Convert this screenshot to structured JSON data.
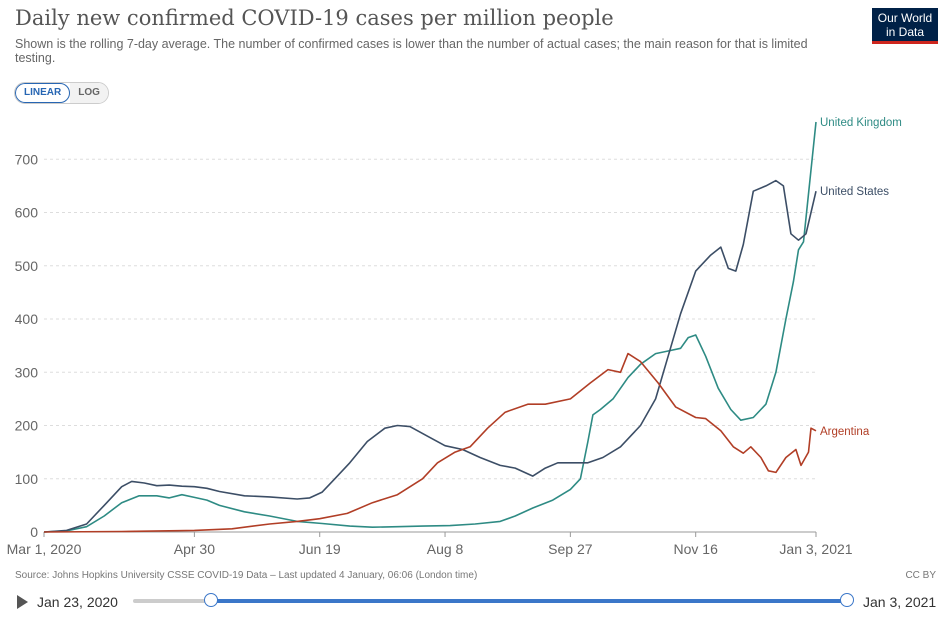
{
  "header": {
    "title": "Daily new confirmed COVID-19 cases per million people",
    "subtitle": "Shown is the rolling 7-day average. The number of confirmed cases is lower than the number of actual cases; the main reason for that is limited testing.",
    "logo_line1": "Our World",
    "logo_line2": "in Data"
  },
  "scale_toggle": {
    "linear": "LINEAR",
    "log": "LOG",
    "selected": "LINEAR"
  },
  "footer": {
    "source": "Source: Johns Hopkins University CSSE COVID-19 Data – Last updated 4 January, 06:06 (London time)",
    "license": "CC BY"
  },
  "timeline": {
    "start_label": "Jan 23, 2020",
    "end_label": "Jan 3, 2021",
    "play_icon": "play-icon"
  },
  "chart_data": {
    "type": "line",
    "title": "Daily new confirmed COVID-19 cases per million people",
    "x_tick_labels": [
      "Mar 1, 2020",
      "Apr 30",
      "Jun 19",
      "Aug 8",
      "Sep 27",
      "Nov 16",
      "Jan 3, 2021"
    ],
    "x_tick_dates": [
      "2020-03-01",
      "2020-04-30",
      "2020-06-19",
      "2020-08-08",
      "2020-09-27",
      "2020-11-16",
      "2021-01-03"
    ],
    "xlim": [
      "2020-03-01",
      "2021-01-03"
    ],
    "y_ticks": [
      0,
      100,
      200,
      300,
      400,
      500,
      600,
      700
    ],
    "ylim": [
      0,
      770
    ],
    "grid": "horizontal dashed",
    "legend": "labels at line ends",
    "series": [
      {
        "name": "United Kingdom",
        "color": "#2e8b84",
        "points": [
          [
            "2020-03-01",
            0
          ],
          [
            "2020-03-10",
            2
          ],
          [
            "2020-03-18",
            10
          ],
          [
            "2020-03-25",
            30
          ],
          [
            "2020-04-01",
            55
          ],
          [
            "2020-04-08",
            68
          ],
          [
            "2020-04-15",
            68
          ],
          [
            "2020-04-20",
            64
          ],
          [
            "2020-04-25",
            70
          ],
          [
            "2020-04-30",
            65
          ],
          [
            "2020-05-05",
            60
          ],
          [
            "2020-05-10",
            50
          ],
          [
            "2020-05-20",
            38
          ],
          [
            "2020-05-30",
            30
          ],
          [
            "2020-06-10",
            20
          ],
          [
            "2020-06-20",
            16
          ],
          [
            "2020-07-01",
            11
          ],
          [
            "2020-07-10",
            9
          ],
          [
            "2020-07-20",
            10
          ],
          [
            "2020-07-30",
            11
          ],
          [
            "2020-08-10",
            12
          ],
          [
            "2020-08-20",
            15
          ],
          [
            "2020-08-30",
            20
          ],
          [
            "2020-09-05",
            30
          ],
          [
            "2020-09-12",
            45
          ],
          [
            "2020-09-20",
            60
          ],
          [
            "2020-09-27",
            80
          ],
          [
            "2020-10-01",
            100
          ],
          [
            "2020-10-04",
            170
          ],
          [
            "2020-10-06",
            220
          ],
          [
            "2020-10-09",
            230
          ],
          [
            "2020-10-14",
            250
          ],
          [
            "2020-10-20",
            290
          ],
          [
            "2020-10-25",
            315
          ],
          [
            "2020-10-31",
            335
          ],
          [
            "2020-11-05",
            340
          ],
          [
            "2020-11-10",
            345
          ],
          [
            "2020-11-13",
            365
          ],
          [
            "2020-11-16",
            370
          ],
          [
            "2020-11-20",
            330
          ],
          [
            "2020-11-25",
            270
          ],
          [
            "2020-11-30",
            230
          ],
          [
            "2020-12-04",
            210
          ],
          [
            "2020-12-09",
            215
          ],
          [
            "2020-12-14",
            240
          ],
          [
            "2020-12-18",
            300
          ],
          [
            "2020-12-22",
            400
          ],
          [
            "2020-12-25",
            470
          ],
          [
            "2020-12-27",
            530
          ],
          [
            "2020-12-29",
            545
          ],
          [
            "2021-01-01",
            680
          ],
          [
            "2021-01-03",
            770
          ]
        ]
      },
      {
        "name": "United States",
        "color": "#3c4e66",
        "points": [
          [
            "2020-03-01",
            0
          ],
          [
            "2020-03-10",
            3
          ],
          [
            "2020-03-18",
            15
          ],
          [
            "2020-03-25",
            50
          ],
          [
            "2020-04-01",
            85
          ],
          [
            "2020-04-05",
            95
          ],
          [
            "2020-04-10",
            92
          ],
          [
            "2020-04-15",
            87
          ],
          [
            "2020-04-20",
            88
          ],
          [
            "2020-04-25",
            86
          ],
          [
            "2020-04-30",
            85
          ],
          [
            "2020-05-05",
            82
          ],
          [
            "2020-05-10",
            76
          ],
          [
            "2020-05-20",
            68
          ],
          [
            "2020-05-30",
            66
          ],
          [
            "2020-06-10",
            62
          ],
          [
            "2020-06-15",
            64
          ],
          [
            "2020-06-20",
            75
          ],
          [
            "2020-06-25",
            100
          ],
          [
            "2020-07-01",
            130
          ],
          [
            "2020-07-08",
            170
          ],
          [
            "2020-07-15",
            195
          ],
          [
            "2020-07-20",
            200
          ],
          [
            "2020-07-25",
            198
          ],
          [
            "2020-08-01",
            180
          ],
          [
            "2020-08-08",
            162
          ],
          [
            "2020-08-15",
            155
          ],
          [
            "2020-08-22",
            140
          ],
          [
            "2020-08-30",
            125
          ],
          [
            "2020-09-05",
            120
          ],
          [
            "2020-09-12",
            105
          ],
          [
            "2020-09-17",
            120
          ],
          [
            "2020-09-22",
            130
          ],
          [
            "2020-09-27",
            130
          ],
          [
            "2020-10-04",
            130
          ],
          [
            "2020-10-10",
            140
          ],
          [
            "2020-10-17",
            160
          ],
          [
            "2020-10-25",
            200
          ],
          [
            "2020-10-31",
            250
          ],
          [
            "2020-11-05",
            330
          ],
          [
            "2020-11-10",
            410
          ],
          [
            "2020-11-16",
            490
          ],
          [
            "2020-11-22",
            520
          ],
          [
            "2020-11-26",
            535
          ],
          [
            "2020-11-29",
            495
          ],
          [
            "2020-12-02",
            490
          ],
          [
            "2020-12-05",
            540
          ],
          [
            "2020-12-09",
            640
          ],
          [
            "2020-12-14",
            650
          ],
          [
            "2020-12-18",
            660
          ],
          [
            "2020-12-21",
            650
          ],
          [
            "2020-12-24",
            560
          ],
          [
            "2020-12-27",
            548
          ],
          [
            "2020-12-30",
            560
          ],
          [
            "2021-01-03",
            640
          ]
        ]
      },
      {
        "name": "Argentina",
        "color": "#b13e26",
        "points": [
          [
            "2020-03-01",
            0
          ],
          [
            "2020-04-01",
            1
          ],
          [
            "2020-04-30",
            3
          ],
          [
            "2020-05-15",
            6
          ],
          [
            "2020-05-30",
            15
          ],
          [
            "2020-06-10",
            20
          ],
          [
            "2020-06-19",
            25
          ],
          [
            "2020-06-30",
            35
          ],
          [
            "2020-07-10",
            55
          ],
          [
            "2020-07-20",
            70
          ],
          [
            "2020-07-30",
            100
          ],
          [
            "2020-08-05",
            130
          ],
          [
            "2020-08-12",
            150
          ],
          [
            "2020-08-18",
            160
          ],
          [
            "2020-08-25",
            195
          ],
          [
            "2020-09-01",
            225
          ],
          [
            "2020-09-10",
            240
          ],
          [
            "2020-09-17",
            240
          ],
          [
            "2020-09-27",
            250
          ],
          [
            "2020-10-05",
            280
          ],
          [
            "2020-10-12",
            305
          ],
          [
            "2020-10-17",
            300
          ],
          [
            "2020-10-20",
            335
          ],
          [
            "2020-10-25",
            320
          ],
          [
            "2020-11-01",
            280
          ],
          [
            "2020-11-08",
            235
          ],
          [
            "2020-11-16",
            215
          ],
          [
            "2020-11-20",
            213
          ],
          [
            "2020-11-26",
            190
          ],
          [
            "2020-12-01",
            160
          ],
          [
            "2020-12-05",
            148
          ],
          [
            "2020-12-08",
            160
          ],
          [
            "2020-12-12",
            140
          ],
          [
            "2020-12-15",
            115
          ],
          [
            "2020-12-18",
            112
          ],
          [
            "2020-12-22",
            140
          ],
          [
            "2020-12-26",
            155
          ],
          [
            "2020-12-28",
            125
          ],
          [
            "2020-12-31",
            150
          ],
          [
            "2021-01-01",
            195
          ],
          [
            "2021-01-03",
            190
          ]
        ]
      }
    ]
  }
}
